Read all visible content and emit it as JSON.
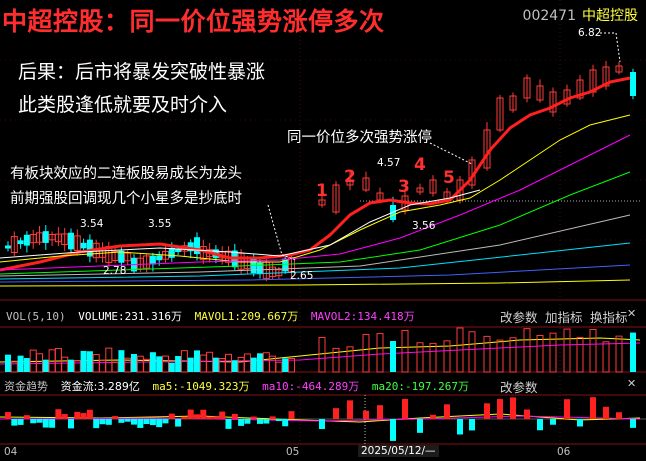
{
  "title": "中超控股：同一价位强势涨停多次",
  "stock": {
    "code": "002471",
    "name": "中超控股"
  },
  "annotations": {
    "line1": "后果：后市将暴发突破性暴涨",
    "line2": "此类股逢低就要及时介入",
    "line3": "同一价位多次强势涨停",
    "line4": "有板块效应的二连板股易成长为龙头",
    "line5": "前期强股回调现几个小星多是抄底时"
  },
  "price_labels": {
    "p682": "6.82",
    "p457": "4.57",
    "p354": "3.54",
    "p355": "3.55",
    "p356": "3.56",
    "p278": "2.78",
    "p265": "2.65"
  },
  "limit_up_marks": [
    "1",
    "2",
    "3",
    "4",
    "5"
  ],
  "volume_panel": {
    "name": "VOL(5,10)",
    "volume": "VOLUME:231.316万",
    "mavol1": "MAVOL1:209.667万",
    "mavol2": "MAVOL2:134.418万",
    "buttons": [
      "改参数",
      "加指标",
      "换指标"
    ]
  },
  "money_panel": {
    "name": "资金趋势",
    "flow": "资金流:3.289亿",
    "ma5": "ma5:-1049.323万",
    "ma10": "ma10:-464.289万",
    "ma20": "ma20:-197.267万",
    "buttons": [
      "改参数"
    ]
  },
  "date_axis": {
    "d1": "04",
    "d2": "05",
    "d3": "2025/05/12/—",
    "d4": "06"
  },
  "colors": {
    "up": "#ff3b3b",
    "down": "#00ffff",
    "ma5": "#ffffff",
    "ma10": "#ffff00",
    "ma20": "#ff00ff",
    "ma30": "#00ff00",
    "title": "#ff2d2d"
  }
}
